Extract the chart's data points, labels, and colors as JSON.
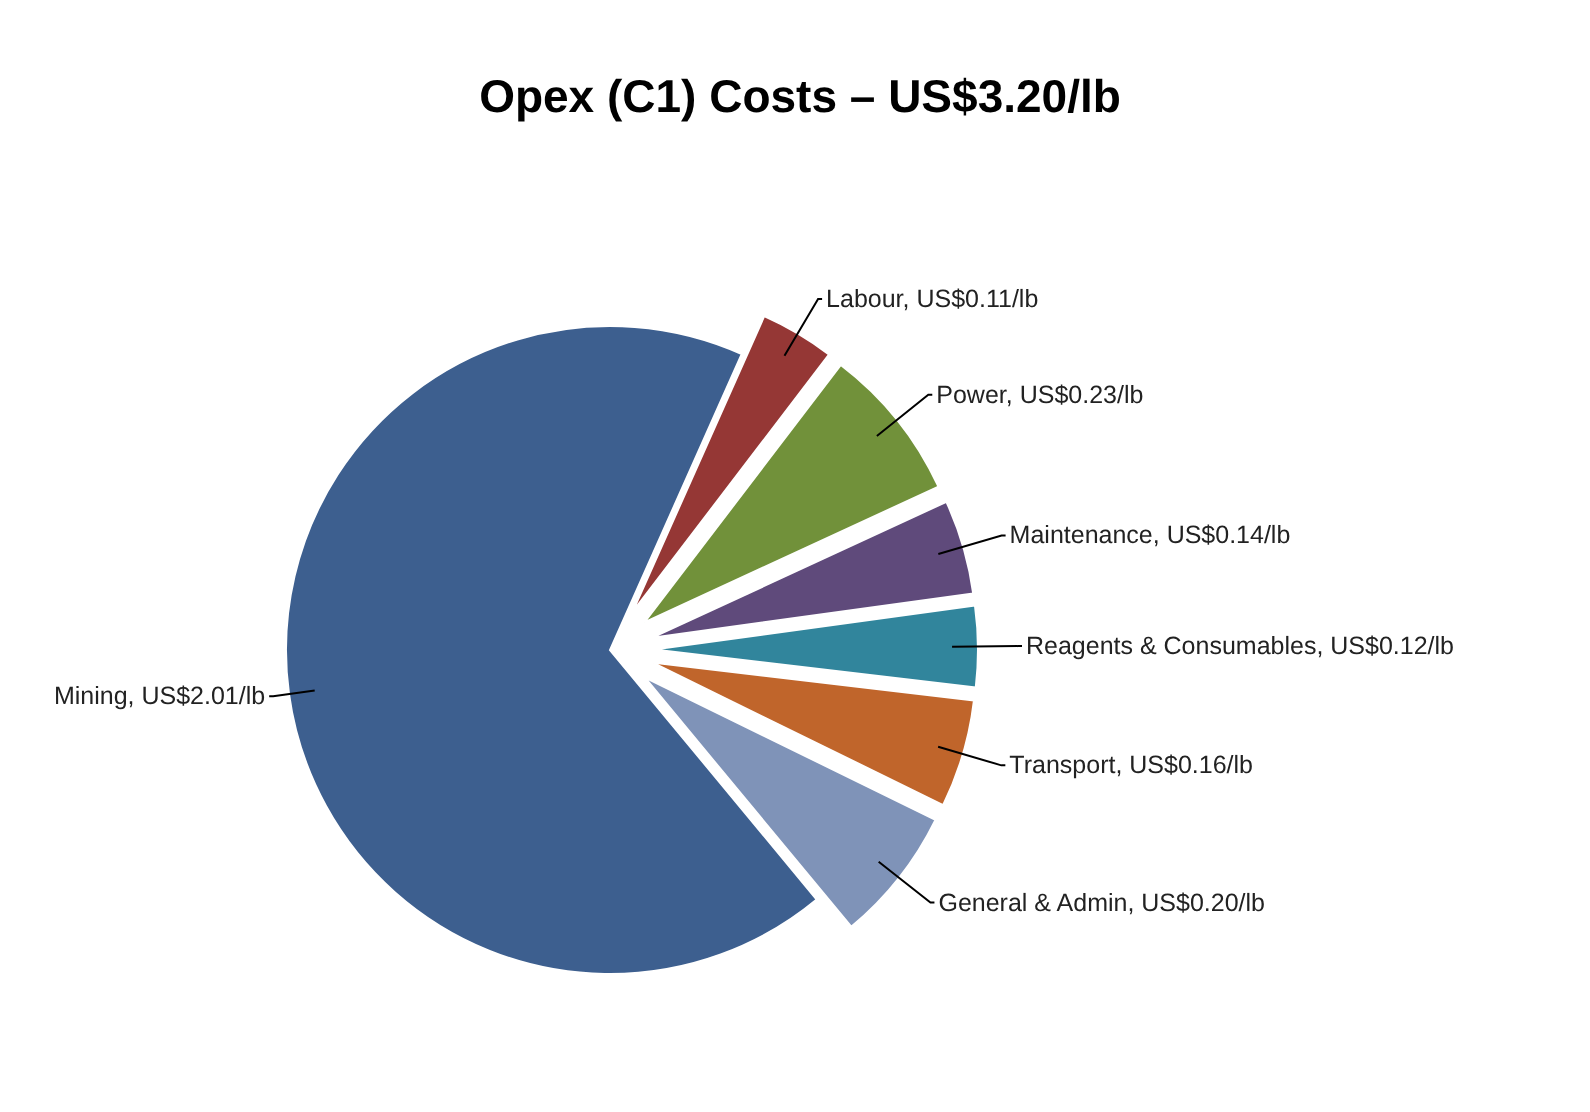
{
  "chart_data": {
    "type": "pie",
    "title": "Opex (C1) Costs – US$3.20/lb",
    "categories": [
      "Labour",
      "Power",
      "Maintenance",
      "Reagents & Consumables",
      "Transport",
      "General & Admin",
      "Mining"
    ],
    "values": [
      0.11,
      0.23,
      0.14,
      0.12,
      0.16,
      0.2,
      2.01
    ],
    "value_labels": [
      "US$0.11/lb",
      "US$0.23/lb",
      "US$0.14/lb",
      "US$0.12/lb",
      "US$0.16/lb",
      "US$0.20/lb",
      "US$2.01/lb"
    ],
    "colors": [
      "#953735",
      "#71913a",
      "#5f4a7b",
      "#31859c",
      "#c0652b",
      "#7f93b8",
      "#3d5f8f"
    ],
    "legend": false
  }
}
